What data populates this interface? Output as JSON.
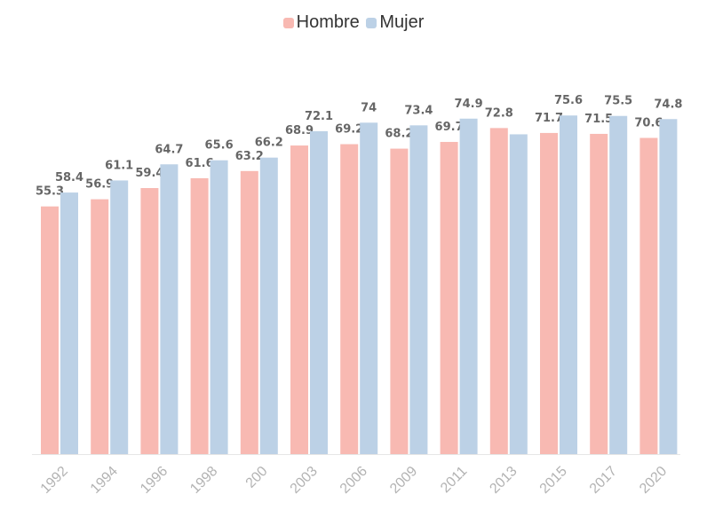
{
  "chart_data": {
    "type": "bar",
    "title": "",
    "xlabel": "",
    "ylabel": "",
    "ylim": [
      0,
      80
    ],
    "grid": false,
    "legend_position": "top-center",
    "categories": [
      "1992",
      "1994",
      "1996",
      "1998",
      "200",
      "2003",
      "2006",
      "2009",
      "2011",
      "2013",
      "2015",
      "2017",
      "2020"
    ],
    "series": [
      {
        "name": "Hombre",
        "color": "#F8B9B2",
        "values": [
          55.3,
          56.9,
          59.4,
          61.6,
          63.2,
          68.9,
          69.2,
          68.2,
          69.7,
          72.8,
          71.7,
          71.5,
          70.6
        ]
      },
      {
        "name": "Mujer",
        "color": "#BCD1E6",
        "values": [
          58.4,
          61.1,
          64.7,
          65.6,
          66.2,
          72.1,
          74,
          73.4,
          74.9,
          null,
          75.6,
          75.5,
          74.8
        ],
        "hidden_label_bar": {
          "category": "2013",
          "value": 71.4
        }
      }
    ]
  },
  "legend": {
    "items": [
      {
        "label": "Hombre",
        "color": "#F8B9B2"
      },
      {
        "label": "Mujer",
        "color": "#BCD1E6"
      }
    ]
  }
}
